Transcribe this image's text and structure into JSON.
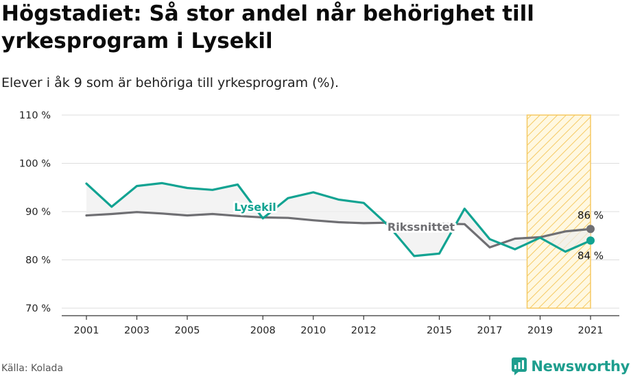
{
  "title": "Högstadiet: Så stor andel når behörighet till yrkesprogram i Lysekil",
  "subtitle": "Elever i åk 9 som är behöriga till yrkesprogram (%).",
  "source": "Källa: Kolada",
  "brand": "Newsworthy",
  "colors": {
    "lysekil": "#12a392",
    "riks": "#6f6f73",
    "highlight": "#f5c962",
    "fill": "#eeeeee",
    "grid": "#dddddd"
  },
  "chart_data": {
    "type": "line",
    "x": [
      2001,
      2002,
      2003,
      2004,
      2005,
      2006,
      2007,
      2008,
      2009,
      2010,
      2011,
      2012,
      2013,
      2014,
      2015,
      2016,
      2017,
      2018,
      2019,
      2020,
      2021
    ],
    "xticks": [
      "2001",
      "2003",
      "2005",
      "2008",
      "2010",
      "2012",
      "2015",
      "2017",
      "2019",
      "2021"
    ],
    "ylim": [
      70,
      110
    ],
    "yticks": [
      "110 %",
      "100 %",
      "90 %",
      "80 %",
      "70 %"
    ],
    "series": [
      {
        "name": "Lysekil",
        "values": [
          95.8,
          91.0,
          95.3,
          95.9,
          94.9,
          94.5,
          95.6,
          88.6,
          92.8,
          94.0,
          92.5,
          91.8,
          87.0,
          80.8,
          81.3,
          90.6,
          84.3,
          82.2,
          84.6,
          81.7,
          84.0
        ]
      },
      {
        "name": "Rikssnittet",
        "values": [
          89.2,
          89.5,
          89.9,
          89.6,
          89.2,
          89.5,
          89.1,
          88.8,
          88.7,
          88.2,
          87.8,
          87.6,
          87.7,
          87.4,
          87.5,
          87.4,
          82.6,
          84.4,
          84.7,
          85.9,
          86.4
        ]
      }
    ],
    "highlight_range": [
      2019,
      2021
    ],
    "end_labels": {
      "riks": "86 %",
      "lysekil": "84 %"
    },
    "grid": true
  }
}
